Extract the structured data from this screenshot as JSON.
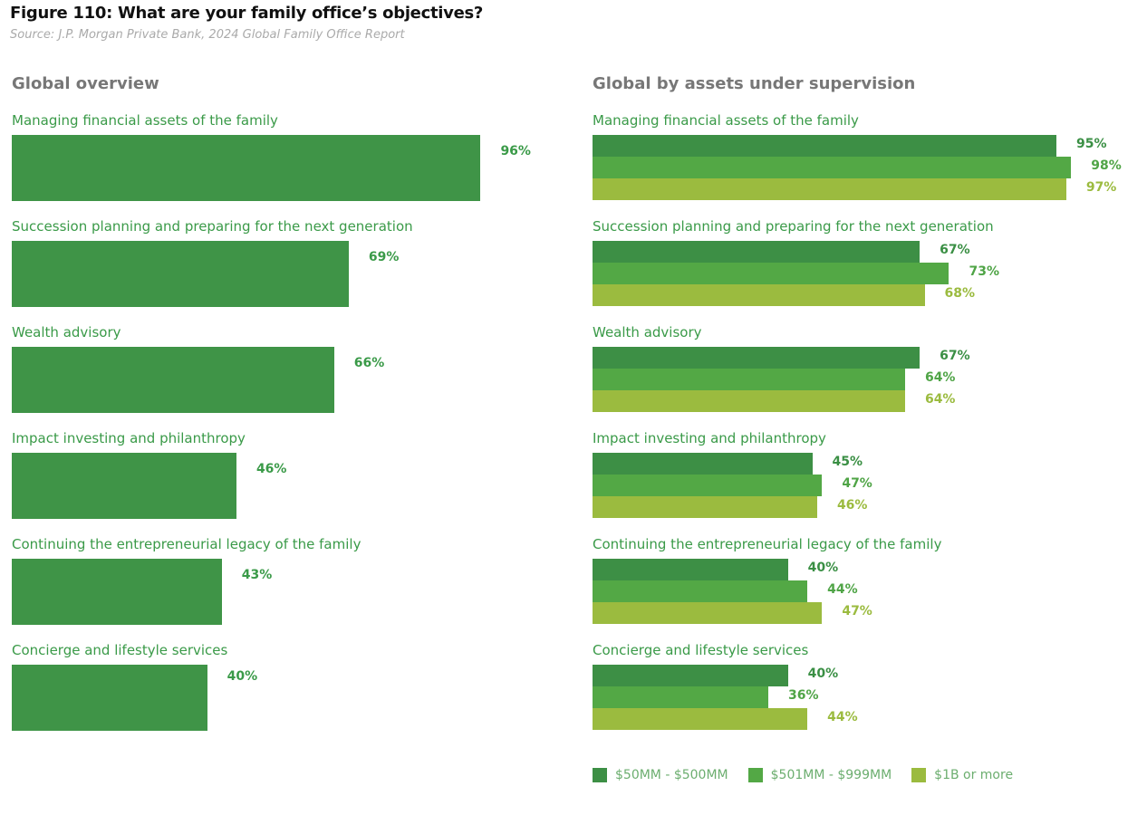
{
  "title": "Figure 110: What are your family office’s objectives?",
  "source": "Source: J.P. Morgan Private Bank, 2024 Global Family Office Report",
  "chart_data": [
    {
      "type": "bar",
      "orientation": "horizontal",
      "title": "Global overview",
      "categories": [
        "Managing financial assets of the family",
        "Succession planning and preparing for the next generation",
        "Wealth advisory",
        "Impact investing and philanthropy",
        "Continuing the entrepreneurial legacy of the family",
        "Concierge and lifestyle services"
      ],
      "values": [
        96,
        69,
        66,
        46,
        43,
        40
      ],
      "value_labels": [
        "96%",
        "69%",
        "66%",
        "46%",
        "43%",
        "40%"
      ],
      "unit": "%",
      "color": "#3f9447",
      "label_color": "#3a9a48",
      "grid": false
    },
    {
      "type": "bar",
      "orientation": "horizontal",
      "title": "Global by assets under supervision",
      "categories": [
        "Managing financial assets of the family",
        "Succession planning and preparing for the next generation",
        "Wealth advisory",
        "Impact investing and philanthropy",
        "Continuing the entrepreneurial legacy of the family",
        "Concierge and lifestyle services"
      ],
      "series": [
        {
          "name": "$50MM - $500MM",
          "color": "#3d8f45",
          "values": [
            95,
            67,
            67,
            45,
            40,
            40
          ],
          "value_labels": [
            "95%",
            "67%",
            "67%",
            "45%",
            "40%",
            "40%"
          ]
        },
        {
          "name": "$501MM - $999MM",
          "color": "#53a845",
          "values": [
            98,
            73,
            64,
            47,
            44,
            36
          ],
          "value_labels": [
            "98%",
            "73%",
            "64%",
            "47%",
            "44%",
            "36%"
          ]
        },
        {
          "name": "$1B or more",
          "color": "#9bbb3f",
          "values": [
            97,
            68,
            64,
            46,
            47,
            44
          ],
          "value_labels": [
            "97%",
            "68%",
            "64%",
            "46%",
            "47%",
            "44%"
          ]
        }
      ],
      "unit": "%",
      "legend": "bottom",
      "grid": false
    }
  ]
}
